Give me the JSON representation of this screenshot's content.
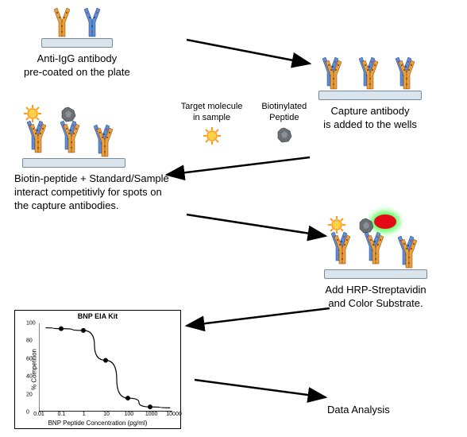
{
  "colors": {
    "bg": "#ffffff",
    "text": "#000000",
    "plate_fill": "#d9e4ec",
    "plate_border": "#7a8a96",
    "antibody_orange_fill": "#e8a23c",
    "antibody_orange_pattern": "#8a3a0e",
    "antibody_blue_fill": "#5a8fd6",
    "antibody_blue_pattern": "#2a3a7a",
    "sun_fill": "#ff9a1a",
    "sun_center": "#ffd24a",
    "biotin_fill": "#6a6f74",
    "arrow": "#000000",
    "chart_border": "#000000",
    "glow_red": "#e6091a",
    "glow_green": "#4cff4c"
  },
  "step1": {
    "caption_l1": "Anti-IgG antibody",
    "caption_l2": "pre-coated on the plate"
  },
  "step2": {
    "caption_l1": "Capture antibody",
    "caption_l2": "is added to the wells"
  },
  "legend": {
    "target_l1": "Target molecule",
    "target_l2": "in sample",
    "biotin_l1": "Biotinylated",
    "biotin_l2": "Peptide"
  },
  "step3": {
    "caption_l1": "Biotin-peptide + Standard/Sample",
    "caption_l2": "interact competitivly for spots on",
    "caption_l3": "the capture antibodies."
  },
  "step4": {
    "caption_l1": "Add HRP-Streptavidin",
    "caption_l2": "and Color Substrate."
  },
  "step5": {
    "caption": "Data Analysis"
  },
  "chart": {
    "title": "BNP EIA Kit",
    "ylabel": "% Competition",
    "xlabel": "BNP Peptide Concentration (pg/ml)",
    "xscale": "log",
    "xlim": [
      0.01,
      10000
    ],
    "ylim": [
      0,
      100
    ],
    "yticks": [
      0,
      20,
      40,
      60,
      80,
      100
    ],
    "xticks": [
      0.01,
      0.1,
      1,
      10,
      100,
      1000,
      10000
    ],
    "xtick_labels": [
      "0.01",
      "0.1",
      "1",
      "10",
      "100",
      "1000",
      "10000"
    ],
    "data_x": [
      0.1,
      1,
      10,
      100,
      1000
    ],
    "data_y": [
      94,
      92,
      58,
      15,
      5
    ],
    "marker": "circle",
    "marker_size": 4,
    "line_color": "#000000",
    "marker_color": "#000000"
  }
}
